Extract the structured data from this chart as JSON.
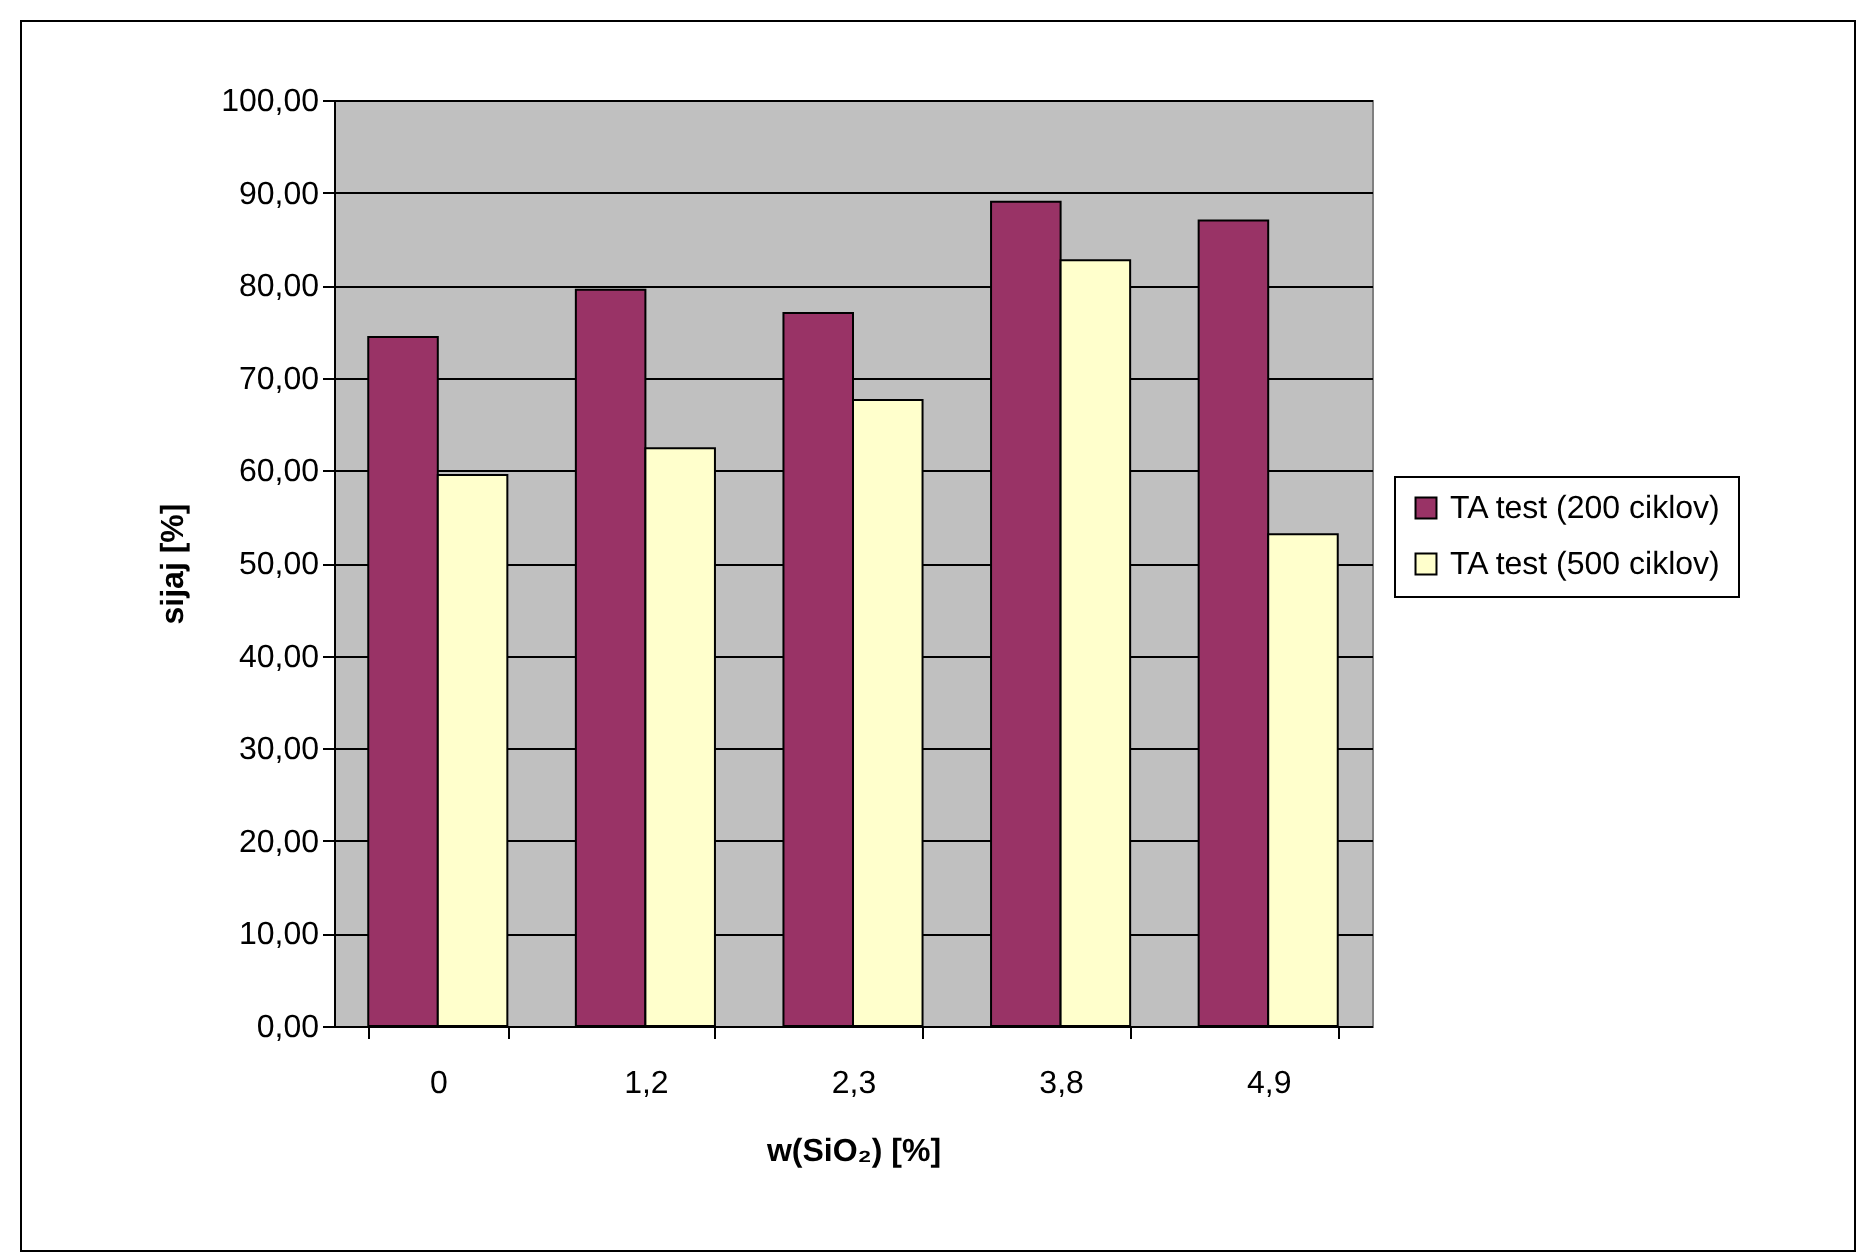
{
  "chart_data": {
    "type": "bar",
    "xlabel": "w(SiO₂) [%]",
    "ylabel": "sijaj [%]",
    "categories": [
      "0",
      "1,2",
      "2,3",
      "3,8",
      "4,9"
    ],
    "series": [
      {
        "name": "TA test (200 ciklov)",
        "color": "#993366",
        "values": [
          74.4,
          79.5,
          77.0,
          89.0,
          87.0
        ]
      },
      {
        "name": "TA test (500 ciklov)",
        "color": "#ffffcc",
        "values": [
          59.5,
          62.4,
          67.6,
          82.7,
          53.1
        ]
      }
    ],
    "ylim": [
      0,
      100
    ],
    "yticks": [
      {
        "value": 0,
        "label": "0,00"
      },
      {
        "value": 10,
        "label": "10,00"
      },
      {
        "value": 20,
        "label": "20,00"
      },
      {
        "value": 30,
        "label": "30,00"
      },
      {
        "value": 40,
        "label": "40,00"
      },
      {
        "value": 50,
        "label": "50,00"
      },
      {
        "value": 60,
        "label": "60,00"
      },
      {
        "value": 70,
        "label": "70,00"
      },
      {
        "value": 80,
        "label": "80,00"
      },
      {
        "value": 90,
        "label": "90,00"
      },
      {
        "value": 100,
        "label": "100,00"
      }
    ],
    "grid": "y",
    "legend": "right"
  }
}
